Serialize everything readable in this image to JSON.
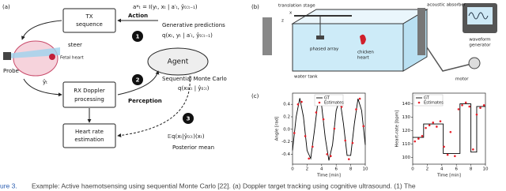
{
  "panel_a": {
    "label": "(a)",
    "tx_box": [
      "TX",
      "sequence"
    ],
    "rx_box": [
      "RX Doppler",
      "processing"
    ],
    "hr_box": [
      "Heart rate",
      "estimation"
    ],
    "action_formula": "a*ₜ = I(yₜ, xₜ | a′ₜ, ŷ₀:ₜ₋₁)",
    "action": "Action",
    "generative": "Generative predictions",
    "generative_formula": "q(xₜ, yₜ | a′ₜ, ŷ₀:ₜ₋₁)",
    "agent": "Agent",
    "step1": "1",
    "step2": "2",
    "step3": "3",
    "perception": "Perception",
    "smc": "Sequential Monte Carlo",
    "smc_formula": "q(x₀:ₜ | ŷ₀:ₜ)",
    "observation": "ŷₜ",
    "expectation": "𝔼q(xₜ|ŷ₀:ₜ)(xₜ)",
    "posterior": "Posterior mean",
    "steer": "steer",
    "fetal_heart": "Fetal heart",
    "probe": "Probe"
  },
  "panel_b": {
    "label": "(b)",
    "translation_stage": "translation stage",
    "x_axis": "x",
    "z_axis": "z",
    "absorber": "acoustic absorber",
    "generator": [
      "waveform",
      "generator"
    ],
    "phased_array": "phased array",
    "chicken_heart": [
      "chicken",
      "heart"
    ],
    "water_tank": "water tank",
    "motor": "motor"
  },
  "panel_c": {
    "label": "(c)"
  },
  "chart_data": [
    {
      "type": "line",
      "xlabel": "Time [min]",
      "ylabel": "Angle [rad]",
      "xlim": [
        0,
        10
      ],
      "ylim": [
        -0.56,
        0.58
      ],
      "xticks": [
        0,
        2,
        4,
        6,
        8,
        10
      ],
      "yticks": [
        -0.4,
        -0.2,
        {
          "value": 0,
          "label": "0.0"
        },
        0.2,
        0.4
      ],
      "legend": "upper center",
      "series": [
        {
          "name": "GT",
          "color": "#000000",
          "style": "line",
          "x": [
            0,
            0.5,
            1,
            1.5,
            2,
            2.5,
            3,
            3.5,
            4,
            4.5,
            5,
            5.5,
            6,
            6.5,
            7,
            7.5,
            8,
            8.5,
            9,
            9.5,
            10
          ],
          "values": [
            -0.34,
            0.2,
            0.5,
            0.2,
            -0.34,
            -0.47,
            -0.03,
            0.45,
            0.38,
            -0.14,
            -0.5,
            -0.25,
            0.3,
            0.49,
            0.09,
            -0.42,
            -0.42,
            0.09,
            0.49,
            0.3,
            -0.25
          ]
        },
        {
          "name": "Estimates",
          "color": "#e8202a",
          "style": "dots",
          "x": [
            0.25,
            0.75,
            1.25,
            1.75,
            2.25,
            2.75,
            3.25,
            3.75,
            4.25,
            4.75,
            5.25,
            5.75,
            6.25,
            6.75,
            7.25,
            7.75,
            8.25,
            8.75,
            9.25,
            9.75
          ],
          "values": [
            -0.06,
            0.4,
            0.44,
            -0.11,
            -0.47,
            -0.28,
            0.27,
            0.47,
            0.16,
            -0.4,
            -0.43,
            0.01,
            0.45,
            0.36,
            -0.18,
            -0.48,
            -0.22,
            0.32,
            0.49,
            0.05
          ]
        }
      ]
    },
    {
      "type": "line",
      "xlabel": "Time [min]",
      "ylabel": "Heart-rate [bpm]",
      "xlim": [
        0,
        10
      ],
      "ylim": [
        95,
        148
      ],
      "xticks": [
        0,
        2,
        4,
        6,
        8,
        10
      ],
      "yticks": [
        100,
        110,
        120,
        130,
        140
      ],
      "legend": "upper left",
      "series": [
        {
          "name": "GT",
          "color": "#000000",
          "style": "line",
          "x": [
            0,
            1.5,
            1.5,
            4.2,
            4.2,
            6.5,
            6.5,
            8,
            8,
            8.8,
            8.8,
            10
          ],
          "values": [
            115,
            115,
            125,
            125,
            103,
            103,
            140,
            140,
            104,
            104,
            138,
            138
          ]
        },
        {
          "name": "Estimates",
          "color": "#e8202a",
          "style": "dots",
          "x": [
            0.3,
            0.8,
            1.3,
            1.8,
            2.3,
            2.8,
            3.3,
            3.8,
            4.3,
            4.8,
            5.2,
            5.8,
            6.3,
            6.8,
            7.3,
            7.8,
            8.3,
            8.8,
            9.3,
            9.8
          ],
          "values": [
            112,
            114,
            116,
            122,
            124,
            126,
            123,
            127,
            108,
            102,
            119,
            101,
            136,
            139,
            141,
            138,
            106,
            132,
            137,
            139
          ]
        }
      ]
    }
  ],
  "caption": {
    "figure": "ure 3.",
    "text": "Example: Active haemotsensing using sequential Monte Carlo [22]. (a) Doppler target tracking using cognitive ultrasound. (1) The"
  }
}
